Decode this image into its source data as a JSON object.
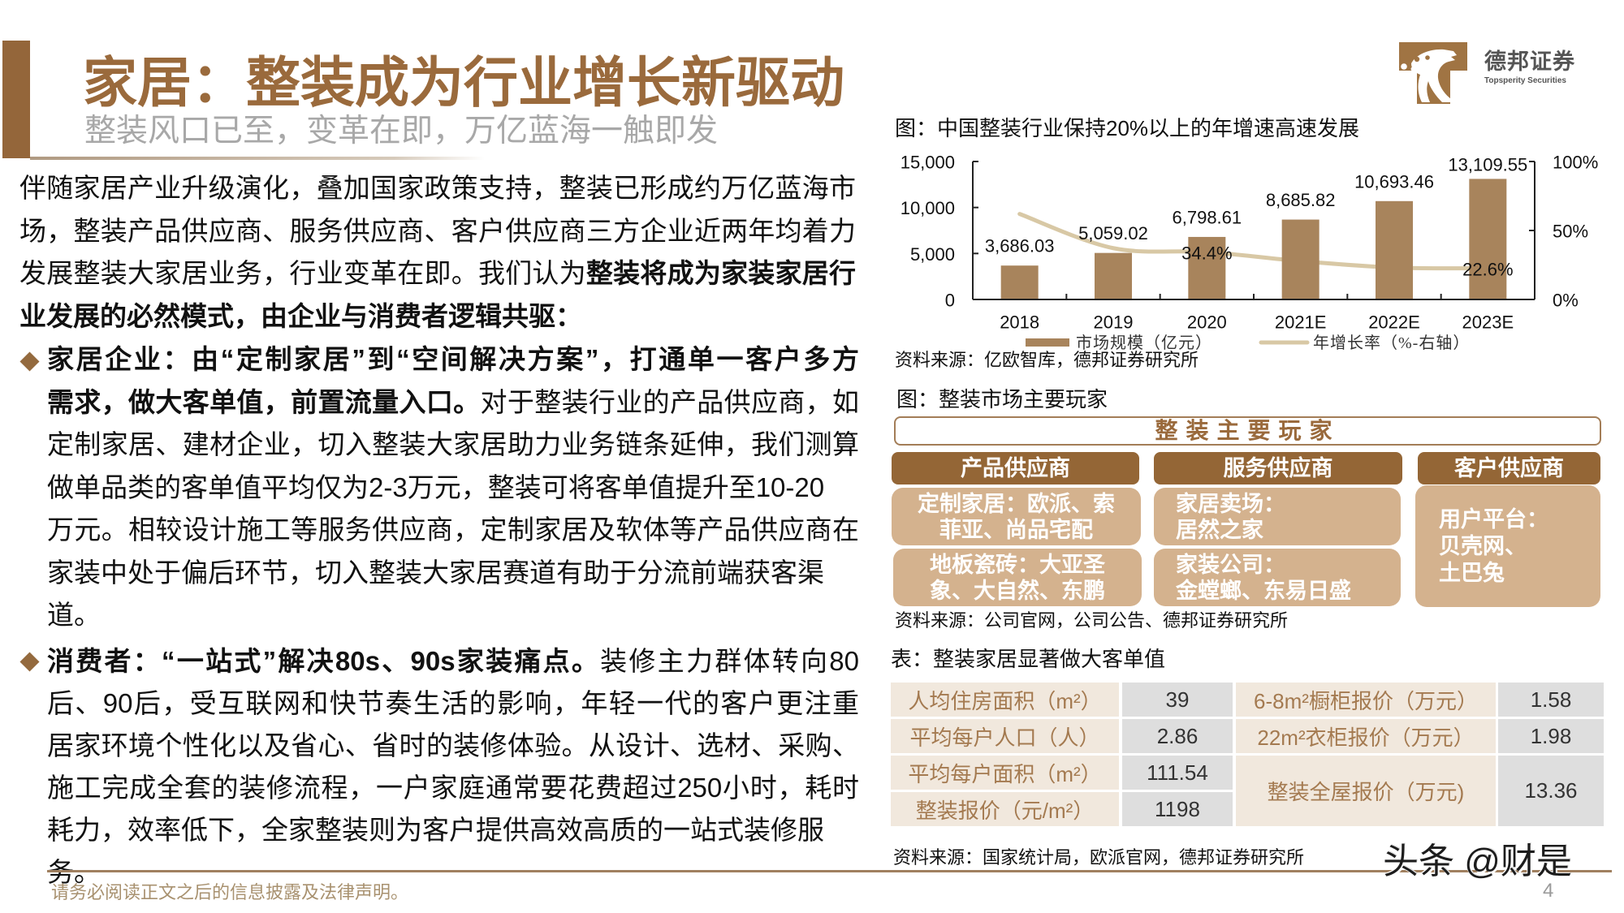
{
  "header": {
    "title": "家居：整装成为行业增长新驱动",
    "subtitle": "整装风口已至，变革在即，万亿蓝海一触即发"
  },
  "logo": {
    "icon": "leopard-logo-icon",
    "name_cn": "德邦证券",
    "name_en": "Topsperity Securities"
  },
  "body": {
    "intro": [
      [
        {
          "text": "伴随家居产业升级演化，叠加国家政策支持，整装已形成约万亿蓝海市",
          "bold": false
        }
      ],
      [
        {
          "text": "场，整装产品供应商、服务供应商、客户供应商三方企业近两年均着力",
          "bold": false
        }
      ],
      [
        {
          "text": "发展整装大家居业务，行业变革在即。我们认为",
          "bold": false
        },
        {
          "text": "整装将成为家装家居行",
          "bold": true
        }
      ],
      [
        {
          "text": "业发展的必然模式，由企业与消费者逻辑共驱：",
          "bold": true
        }
      ]
    ],
    "bullets": [
      {
        "icon": "diamond-bullet-icon",
        "lines": [
          [
            {
              "text": "家居企业：由“定制家居”到“空间解决方案”，打通单一客户多方",
              "bold": true
            }
          ],
          [
            {
              "text": "需求，做大客单值，前置流量入口。",
              "bold": true
            },
            {
              "text": "对于整装行业的产品供应商，如",
              "bold": false
            }
          ],
          [
            {
              "text": "定制家居、建材企业，切入整装大家居助力业务链条延伸，我们测算",
              "bold": false
            }
          ],
          [
            {
              "text": "做单品类的客单值平均仅为2-3万元，整装可将客单值提升至10-20",
              "bold": false
            }
          ],
          [
            {
              "text": "万元。相较设计施工等服务供应商，定制家居及软体等产品供应商在",
              "bold": false
            }
          ],
          [
            {
              "text": "家装中处于偏后环节，切入整装大家居赛道有助于分流前端获客渠",
              "bold": false
            }
          ],
          [
            {
              "text": "道。",
              "bold": false
            }
          ]
        ]
      },
      {
        "icon": "diamond-bullet-icon",
        "lines": [
          [
            {
              "text": "消费者：“一站式”解决80s、90s家装痛点。",
              "bold": true
            },
            {
              "text": "装修主力群体转向80",
              "bold": false
            }
          ],
          [
            {
              "text": "后、90后，受互联网和快节奏生活的影响，年轻一代的客户更注重",
              "bold": false
            }
          ],
          [
            {
              "text": "居家环境个性化以及省心、省时的装修体验。从设计、选材、采购、",
              "bold": false
            }
          ],
          [
            {
              "text": "施工完成全套的装修流程，一户家庭通常要花费超过250小时，耗时",
              "bold": false
            }
          ],
          [
            {
              "text": "耗力，效率低下，全家整装则为客户提供高效高质的一站式装修服",
              "bold": false
            }
          ],
          [
            {
              "text": "务。",
              "bold": false
            }
          ]
        ]
      }
    ]
  },
  "chart_data": {
    "type": "bar",
    "title": "图：中国整装行业保持20%以上的年增速高速发展",
    "categories": [
      "2018",
      "2019",
      "2020",
      "2021E",
      "2022E",
      "2023E"
    ],
    "series": [
      {
        "name": "市场规模（亿元）",
        "type": "bar",
        "axis": "left",
        "values": [
          3686.03,
          5059.02,
          6798.61,
          8685.82,
          10693.46,
          13109.55
        ],
        "labels": [
          "3,686.03",
          "5,059.02",
          "6,798.61",
          "8,685.82",
          "10,693.46",
          "13,109.55"
        ],
        "color": "#A8845C"
      },
      {
        "name": "年增长率（%-右轴）",
        "type": "line",
        "axis": "right",
        "values": [
          62.0,
          37.2,
          34.4,
          27.8,
          23.1,
          22.6
        ],
        "labels": [
          "",
          "",
          "34.4%",
          "",
          "",
          "22.6%"
        ],
        "color": "#D8C8A5"
      }
    ],
    "xlabel": "",
    "ylabel": "",
    "ylim": [
      0,
      15000
    ],
    "yticks": [
      0,
      5000,
      10000,
      15000
    ],
    "ytick_labels": [
      "0",
      "5,000",
      "10,000",
      "15,000"
    ],
    "y2lim": [
      0,
      100
    ],
    "y2ticks": [
      0,
      50,
      100
    ],
    "y2tick_labels": [
      "0%",
      "50%",
      "100%"
    ],
    "grid": false,
    "legend_position": "bottom",
    "source": "资料来源：亿欧智库，德邦证券研究所"
  },
  "players": {
    "title": "图：整装市场主要玩家",
    "header": "整装主要玩家",
    "columns": [
      {
        "label": "产品供应商",
        "cells": [
          {
            "lines": [
              "定制家居：欧派、索",
              "菲亚、尚品宅配"
            ]
          },
          {
            "lines": [
              "地板瓷砖：大亚圣",
              "象、大自然、东鹏"
            ]
          }
        ]
      },
      {
        "label": "服务供应商",
        "cells": [
          {
            "lines": [
              "家居卖场：",
              "居然之家"
            ]
          },
          {
            "lines": [
              "家装公司：",
              "金螳螂、东易日盛"
            ]
          }
        ]
      },
      {
        "label": "客户供应商",
        "cells": [
          {
            "lines": [
              "用户平台：",
              "贝壳网、",
              "土巴兔"
            ]
          }
        ]
      }
    ],
    "source": "资料来源：公司官网，公司公告、德邦证券研究所"
  },
  "table": {
    "title": "表：整装家居显著做大客单值",
    "rows": [
      {
        "label": "人均住房面积（m²）",
        "value": "39",
        "label2": "6-8m²橱柜报价（万元）",
        "value2": "1.58"
      },
      {
        "label": "平均每户人口（人）",
        "value": "2.86",
        "label2": "22m²衣柜报价（万元）",
        "value2": "1.98"
      },
      {
        "label": "平均每户面积（m²）",
        "value": "111.54"
      },
      {
        "label": "整装报价（元/m²）",
        "value": "1198"
      }
    ],
    "merged": {
      "label": "整装全屋报价（万元)",
      "value": "13.36"
    },
    "source": "资料来源：国家统计局，欧派官网，德邦证券研究所"
  },
  "footer": {
    "disclaimer": "请务必阅读正文之后的信息披露及法律声明。",
    "page_number": "4",
    "watermark": "头条 @财是"
  },
  "colors": {
    "brand_brown": "#94663A",
    "title_brown": "#9A6A3C",
    "cell_tan": "#D4B28E",
    "table_beige": "#F1E8DD",
    "table_gray": "#DEDEDE",
    "bar": "#A8845C",
    "line": "#D8C8A5"
  }
}
